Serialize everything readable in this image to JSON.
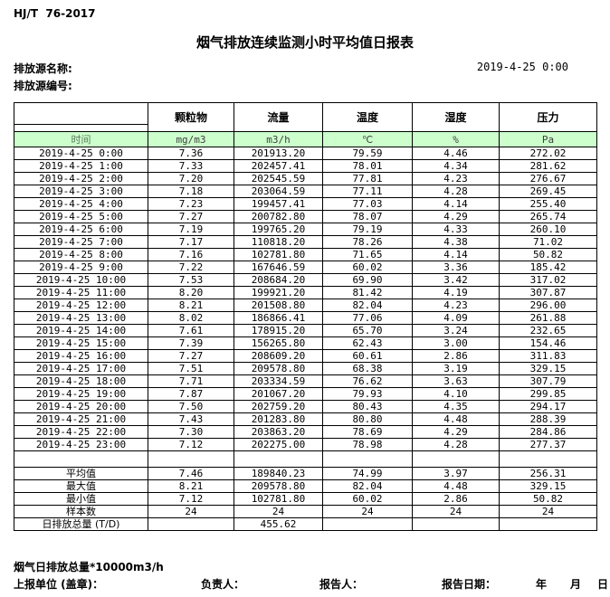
{
  "header": {
    "standard_code": "HJ/T  76-2017",
    "title": "烟气排放连续监测小时平均值日报表",
    "source_name_label": "排放源名称:",
    "source_code_label": "排放源编号:",
    "report_datetime": "2019-4-25 0:00"
  },
  "table": {
    "time_header": "时间",
    "columns": [
      {
        "label": "颗粒物",
        "unit": "mg/m3"
      },
      {
        "label": "流量",
        "unit": "m3/h"
      },
      {
        "label": "温度",
        "unit": "℃"
      },
      {
        "label": "湿度",
        "unit": "%"
      },
      {
        "label": "压力",
        "unit": "Pa"
      }
    ],
    "rows": [
      {
        "time": "2019-4-25 0:00",
        "values": [
          "7.36",
          "201913.20",
          "79.59",
          "4.46",
          "272.02"
        ]
      },
      {
        "time": "2019-4-25 1:00",
        "values": [
          "7.33",
          "202457.41",
          "78.01",
          "4.34",
          "281.62"
        ]
      },
      {
        "time": "2019-4-25 2:00",
        "values": [
          "7.20",
          "202545.59",
          "77.81",
          "4.23",
          "276.67"
        ]
      },
      {
        "time": "2019-4-25 3:00",
        "values": [
          "7.18",
          "203064.59",
          "77.11",
          "4.28",
          "269.45"
        ]
      },
      {
        "time": "2019-4-25 4:00",
        "values": [
          "7.23",
          "199457.41",
          "77.03",
          "4.14",
          "255.40"
        ]
      },
      {
        "time": "2019-4-25 5:00",
        "values": [
          "7.27",
          "200782.80",
          "78.07",
          "4.29",
          "265.74"
        ]
      },
      {
        "time": "2019-4-25 6:00",
        "values": [
          "7.19",
          "199765.20",
          "79.19",
          "4.33",
          "260.10"
        ]
      },
      {
        "time": "2019-4-25 7:00",
        "values": [
          "7.17",
          "110818.20",
          "78.26",
          "4.38",
          "71.02"
        ]
      },
      {
        "time": "2019-4-25 8:00",
        "values": [
          "7.16",
          "102781.80",
          "71.65",
          "4.14",
          "50.82"
        ]
      },
      {
        "time": "2019-4-25 9:00",
        "values": [
          "7.22",
          "167646.59",
          "60.02",
          "3.36",
          "185.42"
        ]
      },
      {
        "time": "2019-4-25 10:00",
        "values": [
          "7.53",
          "208684.20",
          "69.90",
          "3.42",
          "317.02"
        ]
      },
      {
        "time": "2019-4-25 11:00",
        "values": [
          "8.20",
          "199921.20",
          "81.42",
          "4.19",
          "307.87"
        ]
      },
      {
        "time": "2019-4-25 12:00",
        "values": [
          "8.21",
          "201508.80",
          "82.04",
          "4.23",
          "296.00"
        ]
      },
      {
        "time": "2019-4-25 13:00",
        "values": [
          "8.02",
          "186866.41",
          "77.06",
          "4.09",
          "261.88"
        ]
      },
      {
        "time": "2019-4-25 14:00",
        "values": [
          "7.61",
          "178915.20",
          "65.70",
          "3.24",
          "232.65"
        ]
      },
      {
        "time": "2019-4-25 15:00",
        "values": [
          "7.39",
          "156265.80",
          "62.43",
          "3.00",
          "154.46"
        ]
      },
      {
        "time": "2019-4-25 16:00",
        "values": [
          "7.27",
          "208609.20",
          "60.61",
          "2.86",
          "311.83"
        ]
      },
      {
        "time": "2019-4-25 17:00",
        "values": [
          "7.51",
          "209578.80",
          "68.38",
          "3.19",
          "329.15"
        ]
      },
      {
        "time": "2019-4-25 18:00",
        "values": [
          "7.71",
          "203334.59",
          "76.62",
          "3.63",
          "307.79"
        ]
      },
      {
        "time": "2019-4-25 19:00",
        "values": [
          "7.87",
          "201067.20",
          "79.93",
          "4.10",
          "299.85"
        ]
      },
      {
        "time": "2019-4-25 20:00",
        "values": [
          "7.50",
          "202759.20",
          "80.43",
          "4.35",
          "294.17"
        ]
      },
      {
        "time": "2019-4-25 21:00",
        "values": [
          "7.43",
          "201283.80",
          "80.80",
          "4.48",
          "288.39"
        ]
      },
      {
        "time": "2019-4-25 22:00",
        "values": [
          "7.30",
          "203863.20",
          "78.69",
          "4.29",
          "284.86"
        ]
      },
      {
        "time": "2019-4-25 23:00",
        "values": [
          "7.12",
          "202275.00",
          "78.98",
          "4.28",
          "277.37"
        ]
      }
    ],
    "summary_rows": [
      {
        "label": "平均值",
        "values": [
          "7.46",
          "189840.23",
          "74.99",
          "3.97",
          "256.31"
        ]
      },
      {
        "label": "最大值",
        "values": [
          "8.21",
          "209578.80",
          "82.04",
          "4.48",
          "329.15"
        ]
      },
      {
        "label": "最小值",
        "values": [
          "7.12",
          "102781.80",
          "60.02",
          "2.86",
          "50.82"
        ]
      },
      {
        "label": "样本数",
        "values": [
          "24",
          "24",
          "24",
          "24",
          "24"
        ]
      },
      {
        "label": "日排放总量 (T/D)",
        "values": [
          "",
          "455.62",
          "",
          "",
          ""
        ]
      }
    ]
  },
  "footer": {
    "note": "烟气日排放总量*10000m3/h",
    "report_unit_label": "上报单位 (盖章)：",
    "responsible_label": "负责人：",
    "reporter_label": "报告人：",
    "report_date_label": "报告日期：",
    "year_label": "年",
    "month_label": "月",
    "day_label": "日"
  },
  "colors": {
    "unit_row_bg": "#ccffcc",
    "border": "#000000"
  }
}
